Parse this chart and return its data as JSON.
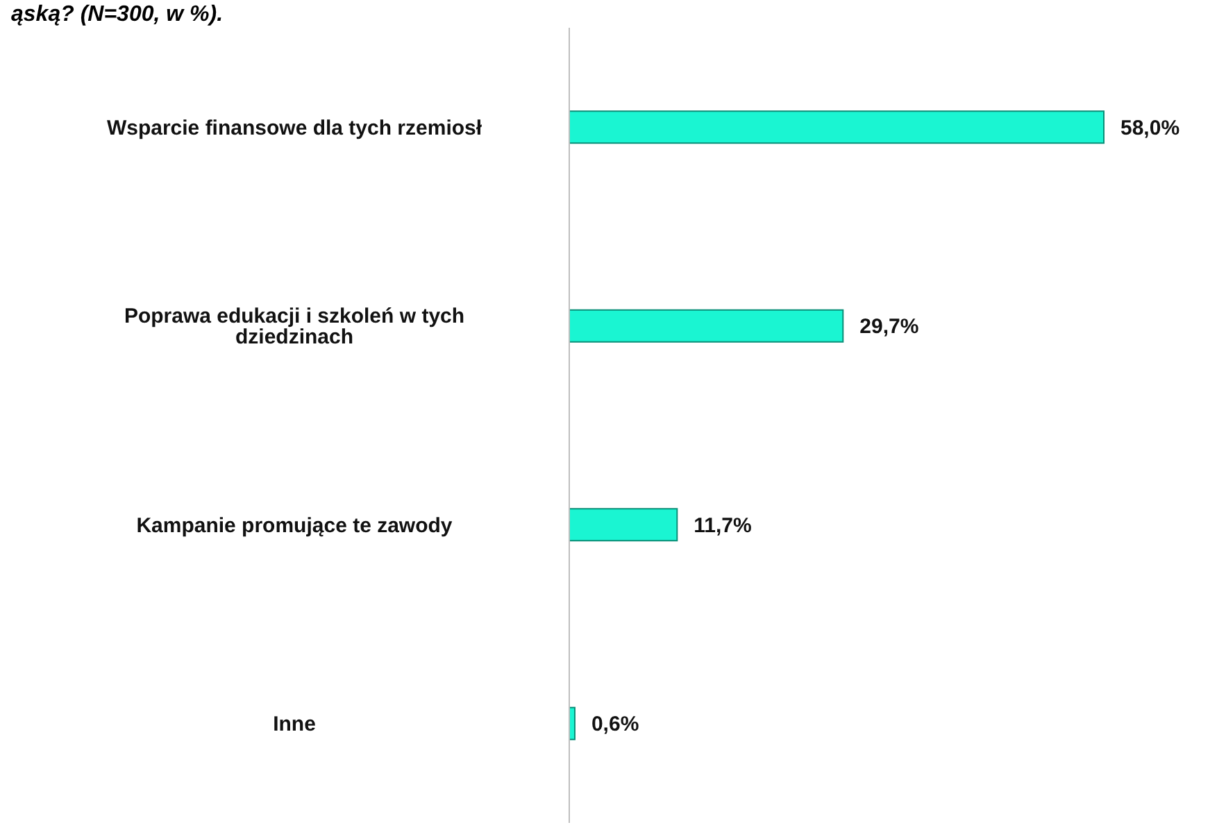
{
  "chart_data": {
    "type": "bar",
    "orientation": "horizontal",
    "title": "ąską? (N=300, w %).",
    "categories": [
      "Wsparcie finansowe dla tych rzemiosł",
      "Poprawa edukacji i szkoleń w tych dziedzinach",
      "Kampanie promujące te zawody",
      "Inne"
    ],
    "values": [
      58.0,
      29.7,
      11.7,
      0.6
    ],
    "value_labels": [
      "58,0%",
      "29,7%",
      "11,7%",
      "0,6%"
    ],
    "color": "#1af5d2",
    "legend": false,
    "grid": false
  }
}
